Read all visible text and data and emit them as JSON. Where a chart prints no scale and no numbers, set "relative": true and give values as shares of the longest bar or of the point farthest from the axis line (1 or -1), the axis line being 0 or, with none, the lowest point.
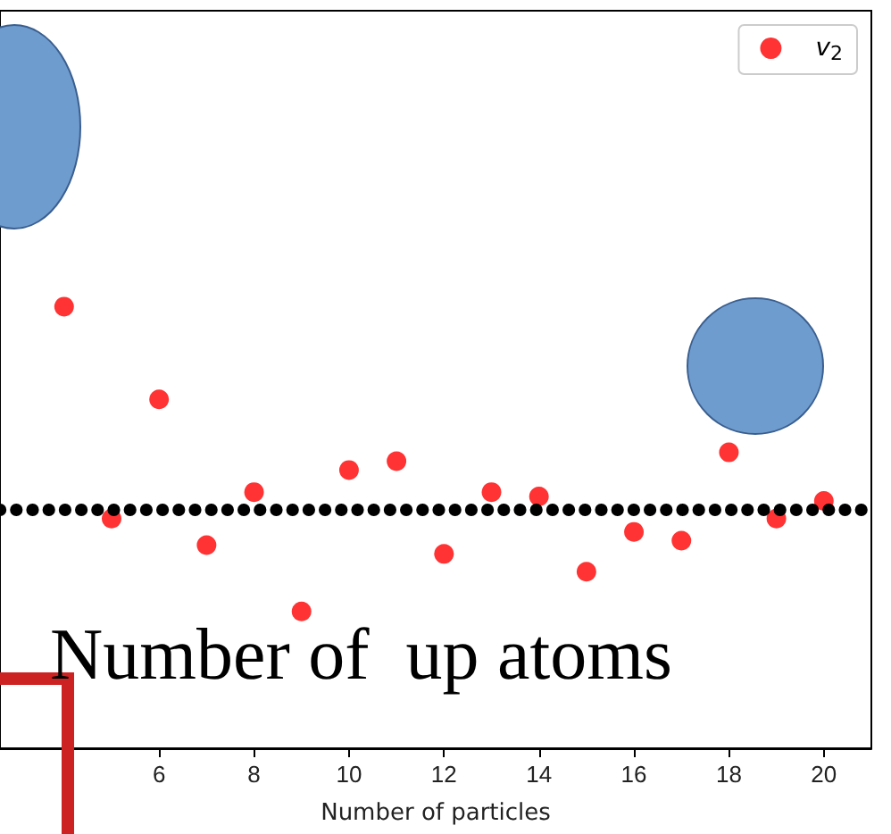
{
  "chart_data": {
    "type": "scatter",
    "relative": true,
    "xlabel": "Number of particles",
    "x": [
      4,
      5,
      6,
      7,
      8,
      9,
      10,
      11,
      12,
      13,
      14,
      15,
      16,
      17,
      18,
      19,
      20
    ],
    "series": [
      {
        "name": "v$_{2}$",
        "color": "#ff0000",
        "values": [
          1.0,
          0.52,
          0.79,
          0.46,
          0.58,
          0.31,
          0.63,
          0.65,
          0.44,
          0.58,
          0.57,
          0.4,
          0.49,
          0.47,
          0.67,
          0.52,
          0.56
        ]
      }
    ],
    "xlim": [
      2.65,
      21.0
    ],
    "xticks": [
      6,
      8,
      10,
      12,
      14,
      16,
      18,
      20
    ],
    "ref_lines": [
      {
        "axis": "y",
        "value": 0.54,
        "color": "#000000",
        "line_style": "dotted"
      }
    ],
    "annotations": [
      "Number of  up atoms"
    ],
    "legend": "top right",
    "marker": "circle",
    "grid": false,
    "tick_labels": "x"
  }
}
